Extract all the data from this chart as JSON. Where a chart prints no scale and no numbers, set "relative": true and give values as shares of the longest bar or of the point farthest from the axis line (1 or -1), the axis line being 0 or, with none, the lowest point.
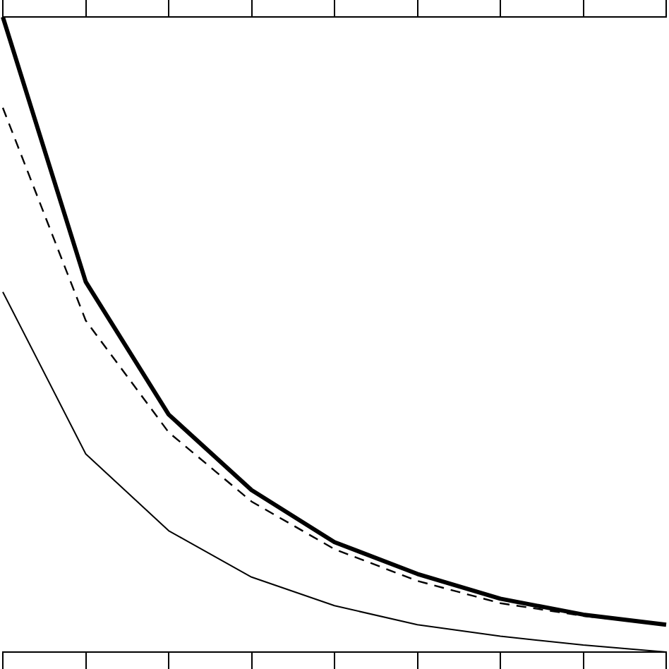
{
  "chart_data": {
    "type": "line",
    "relative": true,
    "categories": [
      null,
      null,
      null,
      null,
      null,
      null,
      null,
      null,
      null
    ],
    "legend": false,
    "grid": false,
    "marker": "none",
    "tick_labels": false,
    "series": [
      {
        "color": "#000000",
        "line_style": "solid",
        "values": [
          1,
          0.583,
          0.374,
          0.255,
          0.173,
          0.123,
          0.084,
          0.059,
          0.043
        ]
      },
      {
        "color": "#000000",
        "line_style": "dashed",
        "values": [
          0.857,
          0.522,
          0.346,
          0.237,
          0.162,
          0.112,
          0.077,
          0.057,
          0.043
        ]
      },
      {
        "color": "#000000",
        "line_style": "solid",
        "values": [
          0.567,
          0.312,
          0.191,
          0.118,
          0.073,
          0.043,
          0.025,
          0.011,
          0
        ]
      }
    ]
  }
}
